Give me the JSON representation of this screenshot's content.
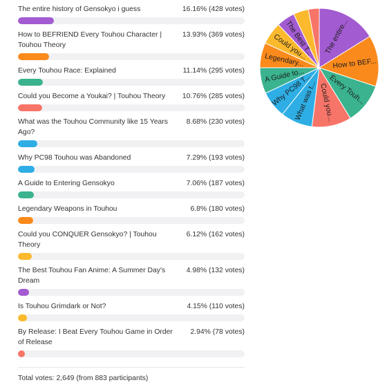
{
  "poll": {
    "options": [
      {
        "label": "The entire history of Gensokyo i guess",
        "stat": "16.16% (428 votes)",
        "percent": 16.16,
        "votes": 428,
        "color": "#a25bd1",
        "pie_label": "The entire..."
      },
      {
        "label": "How to BEFRIEND Every Touhou Character | Touhou Theory",
        "stat": "13.93% (369 votes)",
        "percent": 13.93,
        "votes": 369,
        "color": "#fb8a1c",
        "pie_label": "How to BEF..."
      },
      {
        "label": "Every Touhou Race: Explained",
        "stat": "11.14% (295 votes)",
        "percent": 11.14,
        "votes": 295,
        "color": "#3ab38e",
        "pie_label": "Every Touh..."
      },
      {
        "label": "Could you Become a Youkai? | Touhou Theory",
        "stat": "10.76% (285 votes)",
        "percent": 10.76,
        "votes": 285,
        "color": "#f77468",
        "pie_label": "Could you..."
      },
      {
        "label": "What was the Touhou Community like 15 Years Ago?",
        "stat": "8.68% (230 votes)",
        "percent": 8.68,
        "votes": 230,
        "color": "#2eaee5",
        "pie_label": "What was t..."
      },
      {
        "label": "Why PC98 Touhou was Abandoned",
        "stat": "7.29% (193 votes)",
        "percent": 7.29,
        "votes": 193,
        "color": "#2eaee5",
        "pie_label": "Why PC98 T..."
      },
      {
        "label": "A Guide to Entering Gensokyo",
        "stat": "7.06% (187 votes)",
        "percent": 7.06,
        "votes": 187,
        "color": "#3ab38e",
        "pie_label": "A Guide to..."
      },
      {
        "label": "Legendary Weapons in Touhou",
        "stat": "6.8% (180 votes)",
        "percent": 6.8,
        "votes": 180,
        "color": "#fb8a1c",
        "pie_label": "Legendary..."
      },
      {
        "label": "Could you CONQUER Gensokyo? | Touhou Theory",
        "stat": "6.12% (162 votes)",
        "percent": 6.12,
        "votes": 162,
        "color": "#fbb92e",
        "pie_label": "Could you..."
      },
      {
        "label": "The Best Touhou Fan Anime: A Summer Day's Dream",
        "stat": "4.98% (132 votes)",
        "percent": 4.98,
        "votes": 132,
        "color": "#a25bd1",
        "pie_label": "The Best T..."
      },
      {
        "label": "Is Touhou Grimdark or Not?",
        "stat": "4.15% (110 votes)",
        "percent": 4.15,
        "votes": 110,
        "color": "#fbb92e",
        "pie_label": ""
      },
      {
        "label": "By Release: I Beat Every Touhou Game in Order of Release",
        "stat": "2.94% (78 votes)",
        "percent": 2.94,
        "votes": 78,
        "color": "#f77468",
        "pie_label": ""
      }
    ],
    "total": "Total votes: 2,649 (from 883 participants)"
  },
  "chart_data": {
    "type": "pie",
    "categories": [
      "The entire...",
      "How to BEF...",
      "Every Touh...",
      "Could you...",
      "What was t...",
      "Why PC98 T...",
      "A Guide to...",
      "Legendary...",
      "Could you...",
      "The Best T...",
      "",
      ""
    ],
    "values": [
      428,
      369,
      295,
      285,
      230,
      193,
      187,
      180,
      162,
      132,
      110,
      78
    ],
    "colors": [
      "#a25bd1",
      "#fb8a1c",
      "#3ab38e",
      "#f77468",
      "#2eaee5",
      "#2eaee5",
      "#3ab38e",
      "#fb8a1c",
      "#fbb92e",
      "#a25bd1",
      "#fbb92e",
      "#f77468"
    ]
  }
}
